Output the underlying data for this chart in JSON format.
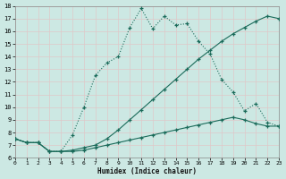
{
  "xlabel": "Humidex (Indice chaleur)",
  "background_color": "#cce8e3",
  "grid_color": "#c8deda",
  "line_color": "#1a6b5a",
  "xlim": [
    0,
    23
  ],
  "ylim": [
    6,
    18
  ],
  "xticks": [
    0,
    1,
    2,
    3,
    4,
    5,
    6,
    7,
    8,
    9,
    10,
    11,
    12,
    13,
    14,
    15,
    16,
    17,
    18,
    19,
    20,
    21,
    22,
    23
  ],
  "yticks": [
    6,
    7,
    8,
    9,
    10,
    11,
    12,
    13,
    14,
    15,
    16,
    17,
    18
  ],
  "line1_x": [
    0,
    1,
    2,
    3,
    4,
    5,
    6,
    7,
    8,
    9,
    10,
    11,
    12,
    13,
    14,
    15,
    16,
    17,
    18,
    19,
    20,
    21,
    22,
    23
  ],
  "line1_y": [
    7.5,
    7.2,
    7.2,
    6.5,
    6.5,
    6.5,
    6.6,
    6.8,
    7.0,
    7.2,
    7.4,
    7.6,
    7.8,
    8.0,
    8.2,
    8.4,
    8.6,
    8.8,
    9.0,
    9.2,
    9.0,
    8.7,
    8.5,
    8.5
  ],
  "line2_x": [
    0,
    1,
    2,
    3,
    4,
    5,
    6,
    7,
    8,
    9,
    10,
    11,
    12,
    13,
    14,
    15,
    16,
    17,
    18,
    19,
    20,
    21,
    22,
    23
  ],
  "line2_y": [
    7.5,
    7.2,
    7.2,
    6.5,
    6.5,
    6.6,
    6.8,
    7.0,
    7.5,
    8.2,
    9.0,
    9.8,
    10.6,
    11.4,
    12.2,
    13.0,
    13.8,
    14.5,
    15.2,
    15.8,
    16.3,
    16.8,
    17.2,
    17.0
  ],
  "line3_x": [
    0,
    1,
    2,
    3,
    4,
    5,
    6,
    7,
    8,
    9,
    10,
    11,
    12,
    13,
    14,
    15,
    16,
    17,
    18,
    19,
    20,
    21,
    22,
    23
  ],
  "line3_y": [
    7.5,
    7.2,
    7.2,
    6.5,
    6.5,
    7.8,
    10.0,
    12.5,
    13.5,
    14.0,
    16.3,
    17.8,
    16.2,
    17.2,
    16.5,
    16.6,
    15.2,
    14.2,
    12.2,
    11.2,
    9.7,
    10.3,
    8.8,
    8.5
  ]
}
